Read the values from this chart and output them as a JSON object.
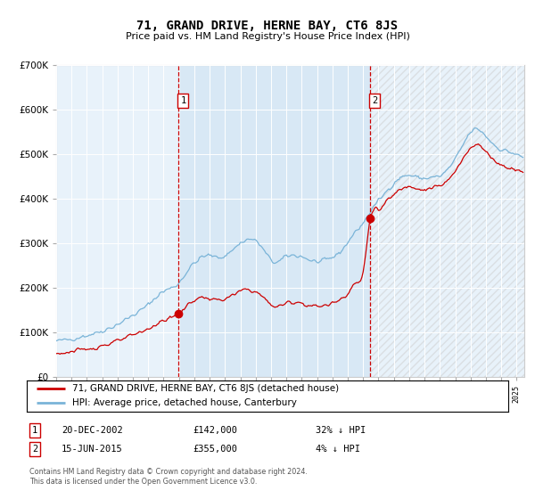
{
  "title": "71, GRAND DRIVE, HERNE BAY, CT6 8JS",
  "subtitle": "Price paid vs. HM Land Registry's House Price Index (HPI)",
  "legend_line1": "71, GRAND DRIVE, HERNE BAY, CT6 8JS (detached house)",
  "legend_line2": "HPI: Average price, detached house, Canterbury",
  "footnote1": "Contains HM Land Registry data © Crown copyright and database right 2024.",
  "footnote2": "This data is licensed under the Open Government Licence v3.0.",
  "transaction1_label": "1",
  "transaction1_date": "20-DEC-2002",
  "transaction1_price": "£142,000",
  "transaction1_hpi": "32% ↓ HPI",
  "transaction2_label": "2",
  "transaction2_date": "15-JUN-2015",
  "transaction2_price": "£355,000",
  "transaction2_hpi": "4% ↓ HPI",
  "hpi_color": "#7ab4d8",
  "price_color": "#cc0000",
  "vline_color": "#cc0000",
  "shade_color": "#d8e8f5",
  "background_color": "#e8f2fa",
  "ylim": [
    0,
    700000
  ],
  "yticks": [
    0,
    100000,
    200000,
    300000,
    400000,
    500000,
    600000,
    700000
  ],
  "transaction1_x": 2002.97,
  "transaction1_y": 142000,
  "transaction2_x": 2015.46,
  "transaction2_y": 355000,
  "xmin": 1995.0,
  "xmax": 2025.5
}
